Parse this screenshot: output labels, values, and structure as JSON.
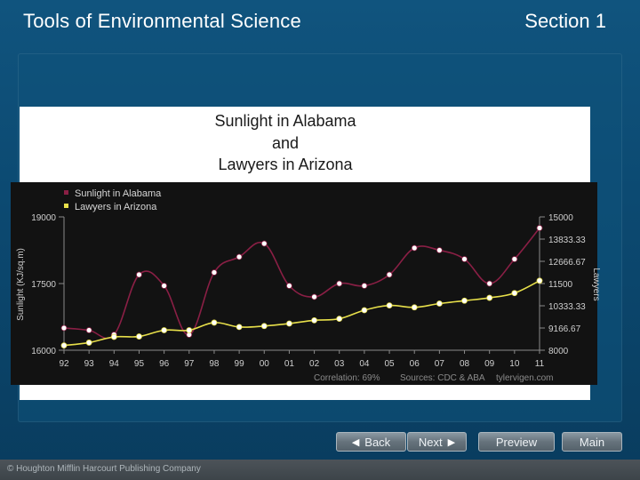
{
  "header": {
    "title": "Tools of Environmental Science",
    "section": "Section 1"
  },
  "nav": {
    "back_label": "Back",
    "next_label": "Next",
    "preview_label": "Preview",
    "main_label": "Main"
  },
  "footer": {
    "copyright": "© Houghton Mifflin Harcourt Publishing Company"
  },
  "colors": {
    "sunlight_series": "#8a1f45",
    "lawyers_series": "#e8e04a",
    "chart_background": "#121212"
  },
  "chart_data": {
    "type": "line",
    "title": [
      "Sunlight in Alabama",
      "and",
      "Lawyers in Arizona"
    ],
    "categories": [
      "92",
      "93",
      "94",
      "95",
      "96",
      "97",
      "98",
      "99",
      "00",
      "01",
      "02",
      "03",
      "04",
      "05",
      "06",
      "07",
      "08",
      "09",
      "10",
      "11"
    ],
    "ylabel_left": "Sunlight (KJ/sq.m)",
    "ylabel_right": "Lawyers",
    "yticks_left": [
      "19000",
      "17500",
      "16000"
    ],
    "ylim_left": [
      16000,
      19000
    ],
    "yticks_right": [
      "15000",
      "13833.33",
      "12666.67",
      "11500",
      "10333.33",
      "9166.67",
      "8000"
    ],
    "ylim_right": [
      8000,
      15000
    ],
    "series": [
      {
        "name": "Sunlight in Alabama",
        "axis": "left",
        "values": [
          16500,
          16450,
          16350,
          17700,
          17450,
          16350,
          17750,
          18100,
          18400,
          17450,
          17200,
          17500,
          17450,
          17700,
          18300,
          18250,
          18050,
          17500,
          18050,
          18750
        ]
      },
      {
        "name": "Lawyers in Arizona",
        "axis": "right",
        "values": [
          8250,
          8400,
          8700,
          8720,
          9050,
          9050,
          9450,
          9220,
          9270,
          9400,
          9570,
          9650,
          10100,
          10350,
          10250,
          10450,
          10600,
          10750,
          11000,
          11650
        ]
      }
    ],
    "annotations": {
      "correlation": "Correlation: 69%",
      "sources": "Sources: CDC & ABA",
      "site": "tylervigen.com"
    },
    "legend_placement": "top-left",
    "grid": false
  }
}
